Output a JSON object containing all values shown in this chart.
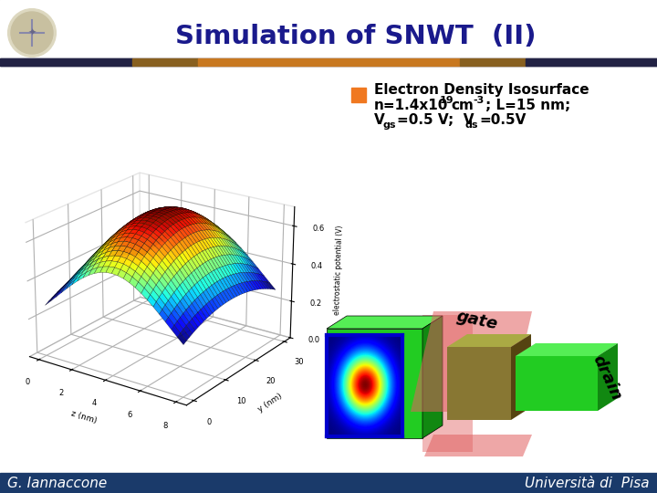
{
  "title": "Simulation of SNWT  (II)",
  "title_color": "#1a1a8c",
  "title_fontsize": 21,
  "bg_color": "#ffffff",
  "outer_bg": "#c8c8c8",
  "footer_bg": "#1a3a6a",
  "footer_left": "G. Iannaccone",
  "footer_right": "Università di  Pisa",
  "footer_color": "white",
  "footer_fontsize": 11,
  "orange_color": "#f07820",
  "blue_bullet_color": "#1a2a7a",
  "text_color": "#000000",
  "gate_color": "#e06060",
  "gate_alpha": 0.55,
  "source_green": "#22cc22",
  "source_green_dark": "#118811",
  "source_green_light": "#55ee55",
  "drain_olive": "#887733",
  "drain_olive_dark": "#554411",
  "drain_olive_light": "#aaaa44",
  "drain_green": "#22cc22",
  "drain_green_dark": "#118811",
  "drain_green_light": "#55ee55"
}
